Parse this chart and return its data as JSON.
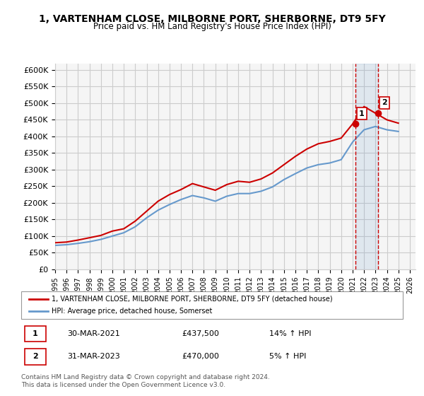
{
  "title": "1, VARTENHAM CLOSE, MILBORNE PORT, SHERBORNE, DT9 5FY",
  "subtitle": "Price paid vs. HM Land Registry's House Price Index (HPI)",
  "ylabel_ticks": [
    "£0",
    "£50K",
    "£100K",
    "£150K",
    "£200K",
    "£250K",
    "£300K",
    "£350K",
    "£400K",
    "£450K",
    "£500K",
    "£550K",
    "£600K"
  ],
  "ytick_values": [
    0,
    50000,
    100000,
    150000,
    200000,
    250000,
    300000,
    350000,
    400000,
    450000,
    500000,
    550000,
    600000
  ],
  "ylim": [
    0,
    620000
  ],
  "xlim_start": 1995.5,
  "xlim_end": 2026.5,
  "red_line_color": "#cc0000",
  "blue_line_color": "#6699cc",
  "background_color": "#ffffff",
  "grid_color": "#cccccc",
  "legend_label_red": "1, VARTENHAM CLOSE, MILBORNE PORT, SHERBORNE, DT9 5FY (detached house)",
  "legend_label_blue": "HPI: Average price, detached house, Somerset",
  "transaction1_label": "1",
  "transaction1_date": "30-MAR-2021",
  "transaction1_price": "£437,500",
  "transaction1_hpi": "14% ↑ HPI",
  "transaction2_label": "2",
  "transaction2_date": "31-MAR-2023",
  "transaction2_price": "£470,000",
  "transaction2_hpi": "5% ↑ HPI",
  "footer": "Contains HM Land Registry data © Crown copyright and database right 2024.\nThis data is licensed under the Open Government Licence v3.0.",
  "transaction1_x": 2021.25,
  "transaction2_x": 2023.25,
  "transaction1_y": 437500,
  "transaction2_y": 470000,
  "hpi_years": [
    1995,
    1996,
    1997,
    1998,
    1999,
    2000,
    2001,
    2002,
    2003,
    2004,
    2005,
    2006,
    2007,
    2008,
    2009,
    2010,
    2011,
    2012,
    2013,
    2014,
    2015,
    2016,
    2017,
    2018,
    2019,
    2020,
    2021,
    2022,
    2023,
    2024,
    2025
  ],
  "hpi_values": [
    72000,
    74000,
    78000,
    83000,
    90000,
    100000,
    110000,
    128000,
    155000,
    178000,
    195000,
    210000,
    222000,
    215000,
    205000,
    220000,
    228000,
    228000,
    235000,
    248000,
    270000,
    288000,
    305000,
    315000,
    320000,
    330000,
    383000,
    420000,
    430000,
    420000,
    415000
  ],
  "red_years": [
    1995,
    1996,
    1997,
    1998,
    1999,
    2000,
    2001,
    2002,
    2003,
    2004,
    2005,
    2006,
    2007,
    2008,
    2009,
    2010,
    2011,
    2012,
    2013,
    2014,
    2015,
    2016,
    2017,
    2018,
    2019,
    2020,
    2021,
    2022,
    2023,
    2024,
    2025
  ],
  "red_values": [
    80000,
    82000,
    88000,
    95000,
    102000,
    115000,
    122000,
    145000,
    175000,
    205000,
    225000,
    240000,
    258000,
    248000,
    238000,
    255000,
    265000,
    262000,
    272000,
    290000,
    315000,
    340000,
    362000,
    378000,
    385000,
    395000,
    437500,
    490000,
    470000,
    450000,
    440000
  ],
  "xtick_years": [
    1995,
    1996,
    1997,
    1998,
    1999,
    2000,
    2001,
    2002,
    2003,
    2004,
    2005,
    2006,
    2007,
    2008,
    2009,
    2010,
    2011,
    2012,
    2013,
    2014,
    2015,
    2016,
    2017,
    2018,
    2019,
    2020,
    2021,
    2022,
    2023,
    2024,
    2025,
    2026
  ]
}
